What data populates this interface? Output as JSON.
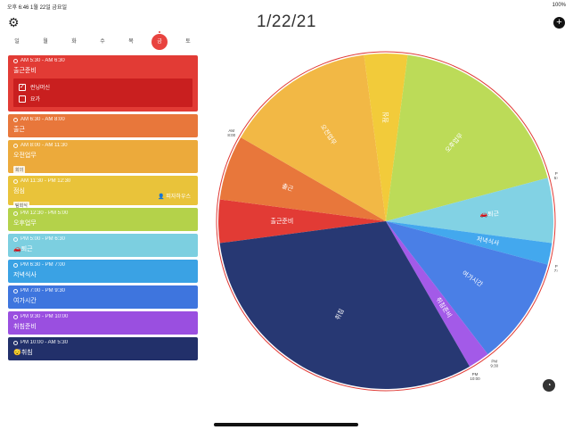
{
  "status": {
    "left": "오후 6:46   1월 22일 금요일",
    "right": "100%"
  },
  "header": {
    "date": "1/22/21"
  },
  "weekdays": [
    {
      "label": "일",
      "selected": false
    },
    {
      "label": "월",
      "selected": false
    },
    {
      "label": "화",
      "selected": false
    },
    {
      "label": "수",
      "selected": false
    },
    {
      "label": "목",
      "selected": false
    },
    {
      "label": "금",
      "selected": true
    },
    {
      "label": "토",
      "selected": false
    }
  ],
  "events": [
    {
      "time": "AM 5:30 - AM 6:30",
      "title": "출근준비",
      "color": "#e23b35",
      "checklist": [
        "런닝머신",
        "요가"
      ]
    },
    {
      "time": "AM 6:30 - AM 8:00",
      "title": "출근",
      "color": "#e8773b"
    },
    {
      "time": "AM 8:00 - AM 11:30",
      "title": "오전업무",
      "color": "#ecaa3b",
      "tag": "회의"
    },
    {
      "time": "AM 11:30 - PM 12:30",
      "title": "점심",
      "color": "#e9c33a",
      "tag": "팀회식",
      "person": "피자하우스"
    },
    {
      "time": "PM 12:30 - PM 5:00",
      "title": "오후업무",
      "color": "#b4d24a"
    },
    {
      "time": "PM 5:00 - PM 6:30",
      "title": "🚗퇴근",
      "color": "#7ccfe0"
    },
    {
      "time": "PM 6:30 - PM 7:00",
      "title": "저녁식사",
      "color": "#3aa2e4"
    },
    {
      "time": "PM 7:00 - PM 9:30",
      "title": "여가시간",
      "color": "#3e75de"
    },
    {
      "time": "PM 9:30 - PM 10:00",
      "title": "취침준비",
      "color": "#9a4fe0"
    },
    {
      "time": "PM 10:00 - AM 5:30",
      "title": "😴취침",
      "color": "#22306a"
    }
  ],
  "wheel": {
    "segments": [
      {
        "label": "출근준비",
        "start_h": 5.5,
        "end_h": 6.5,
        "color": "#e23b35"
      },
      {
        "label": "출근",
        "start_h": 6.5,
        "end_h": 8.0,
        "color": "#e8773b"
      },
      {
        "label": "오전업무",
        "start_h": 8.0,
        "end_h": 11.5,
        "color": "#f2b845"
      },
      {
        "label": "점심",
        "start_h": 11.5,
        "end_h": 12.5,
        "color": "#f2cb3a"
      },
      {
        "label": "오후업무",
        "start_h": 12.5,
        "end_h": 17.0,
        "color": "#bcdb58"
      },
      {
        "label": "🚗퇴근",
        "start_h": 17.0,
        "end_h": 18.5,
        "color": "#82d2e4"
      },
      {
        "label": "저녁식사",
        "start_h": 18.5,
        "end_h": 19.0,
        "color": "#43a8ee"
      },
      {
        "label": "여가시간",
        "start_h": 19.0,
        "end_h": 21.5,
        "color": "#4a7fe6"
      },
      {
        "label": "취침준비",
        "start_h": 21.5,
        "end_h": 22.0,
        "color": "#a35ae8"
      },
      {
        "label": "취침",
        "start_h": 22.0,
        "end_h": 29.5,
        "color": "#273873"
      }
    ],
    "tick_labels": [
      {
        "text": "PM 10:00",
        "h": 22.0
      },
      {
        "text": "PM 9:30",
        "h": 21.5
      },
      {
        "text": "PM 7:00",
        "h": 19.0
      },
      {
        "text": "PM 6:30",
        "h": 18.5
      },
      {
        "text": "PM 5:00",
        "h": 17.0
      },
      {
        "text": "PM 12:30",
        "h": 12.5
      },
      {
        "text": "AM 11:30",
        "h": 11.5
      },
      {
        "text": "AM 8:00",
        "h": 8.0
      },
      {
        "text": "AM 6:30",
        "h": 6.5
      },
      {
        "text": "AM 5:30",
        "h": 5.5
      }
    ]
  }
}
